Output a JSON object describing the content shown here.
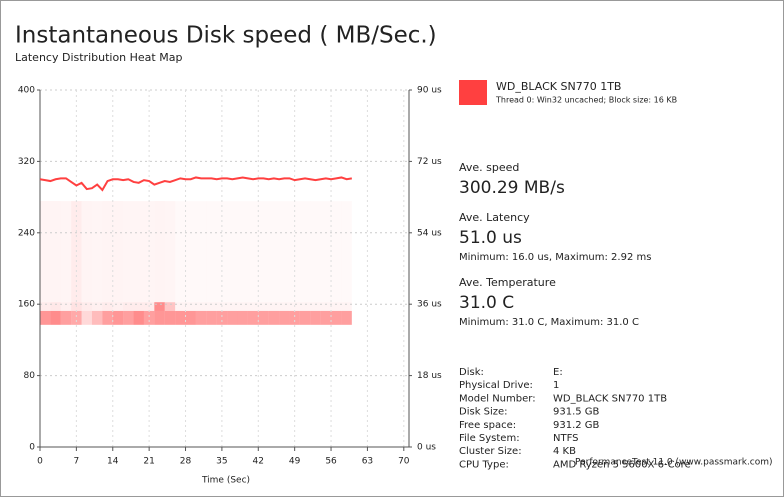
{
  "chart_data": {
    "type": "line",
    "title": "Instantaneous Disk speed ( MB/Sec.)",
    "subtitle": "Latency Distribution Heat Map",
    "xlabel": "Time (Sec)",
    "x": [
      0,
      1,
      2,
      3,
      4,
      5,
      6,
      7,
      8,
      9,
      10,
      11,
      12,
      13,
      14,
      15,
      16,
      17,
      18,
      19,
      20,
      21,
      22,
      23,
      24,
      25,
      26,
      27,
      28,
      29,
      30,
      31,
      32,
      33,
      34,
      35,
      36,
      37,
      38,
      39,
      40,
      41,
      42,
      43,
      44,
      45,
      46,
      47,
      48,
      49,
      50,
      51,
      52,
      53,
      54,
      55,
      56,
      57,
      58,
      59,
      60
    ],
    "series": [
      {
        "name": "WD_BLACK SN770 1TB",
        "color": "#ff4040",
        "values": [
          300,
          299,
          298,
          300,
          301,
          301,
          297,
          293,
          296,
          289,
          290,
          294,
          288,
          298,
          300,
          300,
          299,
          300,
          297,
          296,
          299,
          298,
          294,
          296,
          298,
          297,
          299,
          301,
          300,
          300,
          302,
          301,
          301,
          301,
          300,
          301,
          301,
          300,
          301,
          302,
          301,
          300,
          301,
          301,
          300,
          301,
          300,
          301,
          301,
          299,
          300,
          301,
          300,
          299,
          300,
          301,
          300,
          301,
          302,
          300,
          301
        ]
      }
    ],
    "legend_detail": "Thread 0: Win32 uncached; Block size: 16 KB",
    "xlim": [
      0,
      71
    ],
    "xticks": [
      0,
      7,
      14,
      21,
      28,
      35,
      42,
      49,
      56,
      63,
      70
    ],
    "ylim": [
      0,
      400
    ],
    "yticks": [
      0,
      80,
      160,
      240,
      320,
      400
    ],
    "y2lim": [
      0,
      90
    ],
    "y2ticks": [
      {
        "value": 0,
        "label": "0 us"
      },
      {
        "value": 18,
        "label": "18 us"
      },
      {
        "value": 36,
        "label": "36 us"
      },
      {
        "value": 54,
        "label": "54 us"
      },
      {
        "value": 72,
        "label": "72 us"
      },
      {
        "value": 90,
        "label": "90 us"
      }
    ],
    "grid": true,
    "heatmap": {
      "axis": "y2",
      "color": "#ff4040",
      "x_edges": [
        0,
        2,
        4,
        6,
        8,
        10,
        12,
        14,
        16,
        18,
        20,
        22,
        24,
        26,
        28,
        30,
        32,
        34,
        36,
        38,
        40,
        42,
        44,
        46,
        48,
        50,
        52,
        54,
        56,
        58,
        60
      ],
      "bins": [
        30.8,
        34.3,
        36.5,
        62
      ],
      "intensity": [
        [
          0.55,
          0.6,
          0.5,
          0.45,
          0.2,
          0.35,
          0.5,
          0.55,
          0.5,
          0.6,
          0.5,
          0.55,
          0.55,
          0.55,
          0.55,
          0.5,
          0.5,
          0.5,
          0.5,
          0.5,
          0.5,
          0.5,
          0.5,
          0.5,
          0.5,
          0.5,
          0.5,
          0.5,
          0.5,
          0.5
        ],
        [
          0.1,
          0.12,
          0.08,
          0.15,
          0.1,
          0.08,
          0.1,
          0.08,
          0.1,
          0.1,
          0.1,
          0.6,
          0.3,
          0.06,
          0.06,
          0.06,
          0.06,
          0.06,
          0.06,
          0.06,
          0.06,
          0.06,
          0.06,
          0.06,
          0.06,
          0.06,
          0.06,
          0.06,
          0.06,
          0.06
        ],
        [
          0.06,
          0.06,
          0.05,
          0.1,
          0.06,
          0.05,
          0.06,
          0.06,
          0.05,
          0.05,
          0.05,
          0.06,
          0.05,
          0.03,
          0.03,
          0.03,
          0.03,
          0.03,
          0.03,
          0.03,
          0.03,
          0.03,
          0.03,
          0.03,
          0.03,
          0.03,
          0.03,
          0.03,
          0.03,
          0.03
        ]
      ]
    }
  },
  "stats": [
    {
      "label": "Ave. speed",
      "value": "300.29 MB/s"
    },
    {
      "label": "Ave. Latency",
      "value": "51.0 us",
      "detail": "Minimum: 16.0 us, Maximum: 2.92 ms"
    },
    {
      "label": "Ave. Temperature",
      "value": "31.0 C",
      "detail": "Minimum: 31.0 C, Maximum: 31.0 C"
    }
  ],
  "disk_info": {
    "rows": [
      [
        "Disk:",
        "E:"
      ],
      [
        "Physical Drive:",
        "1"
      ],
      [
        "Model Number:",
        "WD_BLACK SN770 1TB"
      ],
      [
        "Disk Size:",
        "931.5 GB"
      ],
      [
        "Free space:",
        "931.2 GB"
      ],
      [
        "File System:",
        "NTFS"
      ],
      [
        "Cluster Size:",
        "4 KB"
      ],
      [
        "CPU Type:",
        "AMD Ryzen 5 5600X 6-Core"
      ]
    ]
  },
  "watermark": "PerformanceTest 11.0 (www.passmark.com)"
}
